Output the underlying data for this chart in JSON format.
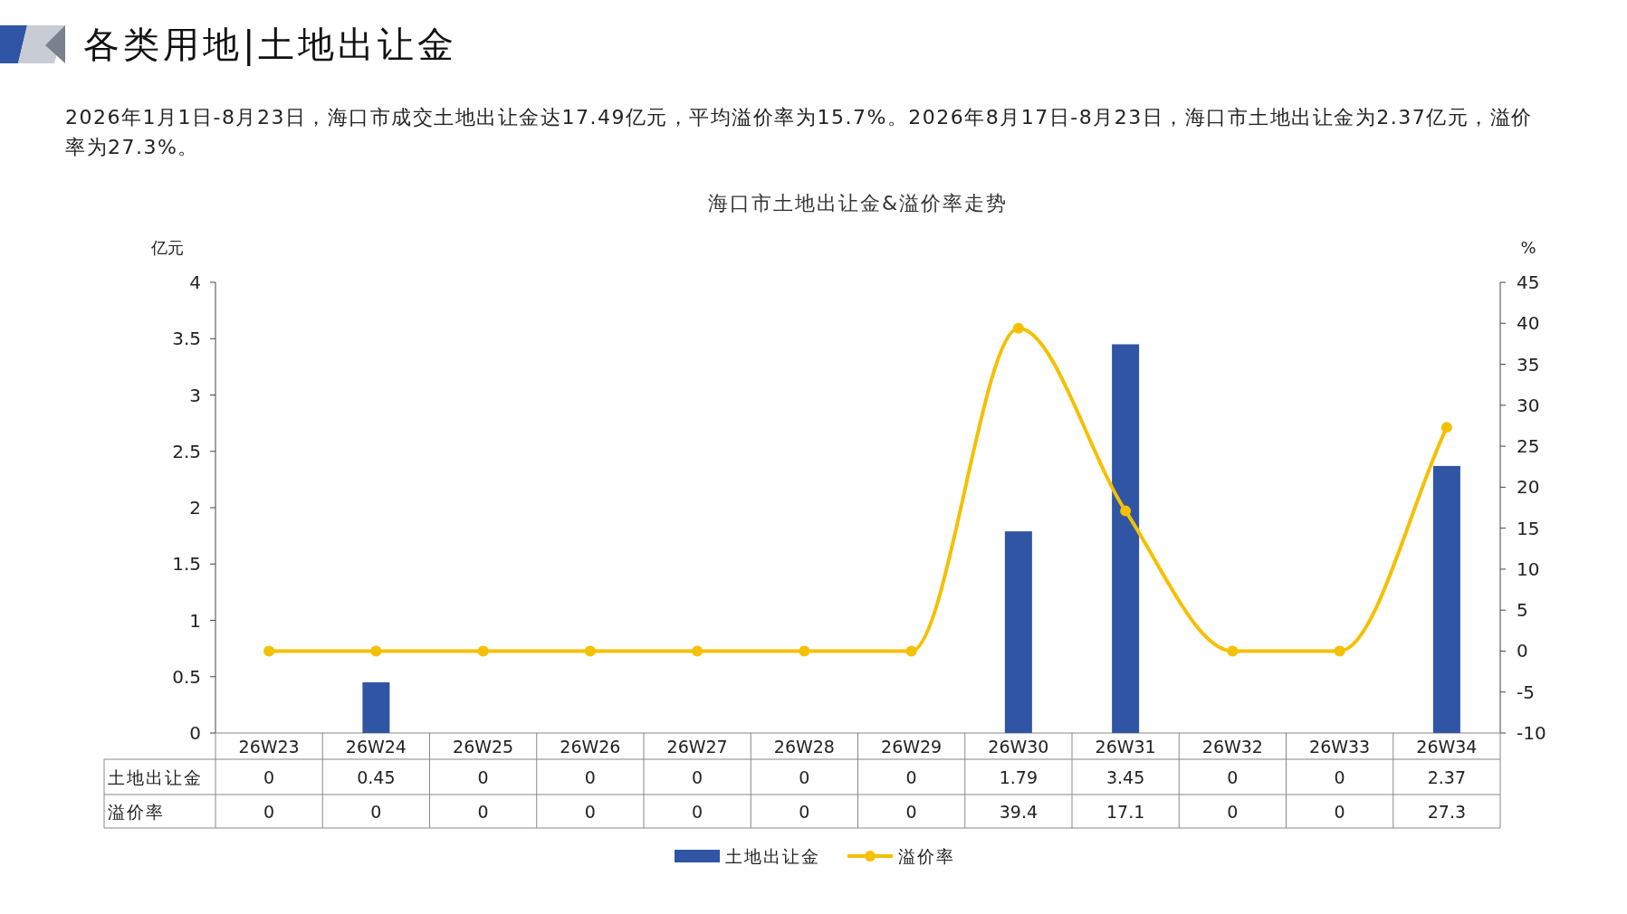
{
  "chart_data": {
    "type": "bar",
    "title": "海口市土地出让金&溢价率走势",
    "annotations": [
      "各类用地|土地出让金",
      "2026年1月1日-8月23日，海口市成交土地出让金达17.49亿元，平均溢价率为15.7%。2026年8月17日-8月23日，海口市土地出让金为2.37亿元，溢价率为27.3%。"
    ],
    "ylabel": "亿元",
    "y2label": "%",
    "categories": [
      "26W23",
      "26W24",
      "26W25",
      "26W26",
      "26W27",
      "26W28",
      "26W29",
      "26W30",
      "26W31",
      "26W32",
      "26W33",
      "26W34"
    ],
    "series": [
      {
        "name": "土地出让金",
        "color": "#2f55a4",
        "values": [
          0,
          0.45,
          0,
          0,
          0,
          0,
          0,
          1.79,
          3.45,
          0,
          0,
          2.37
        ]
      },
      {
        "name": "溢价率",
        "type": "line",
        "axis": "y2",
        "color": "#f5c000",
        "marker": "circle",
        "values": [
          0,
          0,
          0,
          0,
          0,
          0,
          0,
          39.4,
          17.1,
          0,
          0,
          27.3
        ]
      }
    ],
    "ylim": [
      0,
      4
    ],
    "yticks": [
      0,
      0.5,
      1,
      1.5,
      2,
      2.5,
      3,
      3.5,
      4
    ],
    "y2lim": [
      -10,
      45
    ],
    "y2ticks": [
      -10,
      -5,
      0,
      5,
      10,
      15,
      20,
      25,
      30,
      35,
      40,
      45
    ],
    "data_labels": true,
    "legend": "bottom",
    "grid": false
  }
}
